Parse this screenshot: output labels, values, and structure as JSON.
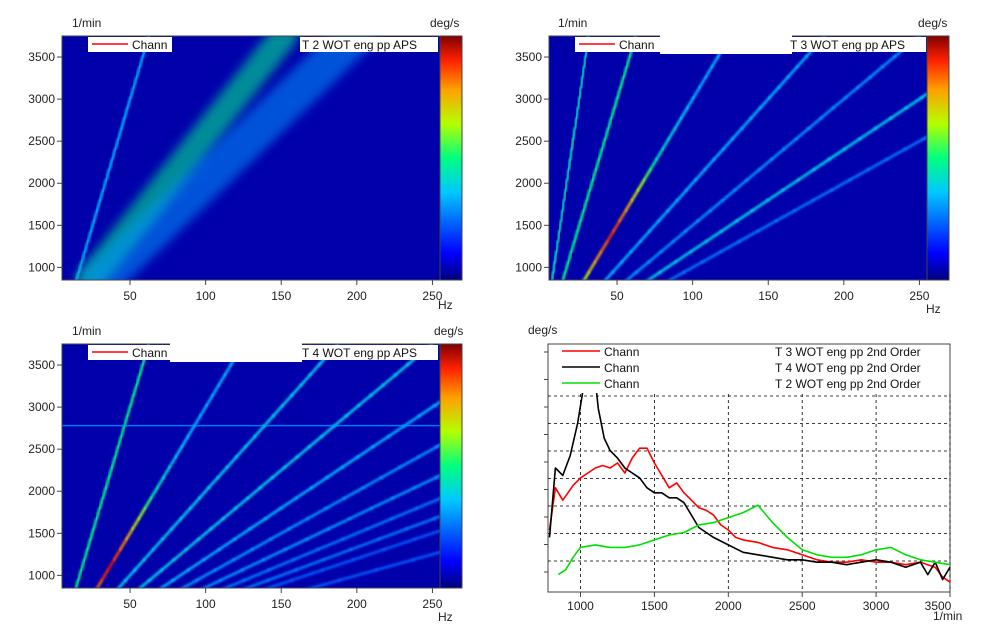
{
  "chart_data": [
    {
      "type": "heatmap",
      "panel": "spectrogram-top-left",
      "xlabel": "Hz",
      "ylabel": "1/min",
      "colorbar_label": "deg/s",
      "xlim": [
        5,
        255
      ],
      "ylim": [
        850,
        3750
      ],
      "xticks": [
        50,
        100,
        150,
        200,
        250
      ],
      "yticks": [
        1000,
        1500,
        2000,
        2500,
        3000,
        3500
      ],
      "legend": {
        "name_left": "Chann",
        "name_right": "T 2 WOT eng pp  APS",
        "color": "#ff0000"
      },
      "features": [
        {
          "kind": "order-line",
          "hz_at_1000": 17,
          "hz_at_3600": 60,
          "intensity": 0.35
        },
        {
          "kind": "diffuse-band",
          "hz_at_1000": 30,
          "hz_at_3600": 145,
          "intensity": 0.5,
          "width_hz": 18
        },
        {
          "kind": "diffuse-band",
          "hz_at_1000": 40,
          "hz_at_3600": 190,
          "intensity": 0.3,
          "width_hz": 25
        }
      ]
    },
    {
      "type": "heatmap",
      "panel": "spectrogram-top-right",
      "xlabel": "Hz",
      "ylabel": "1/min",
      "colorbar_label": "deg/s",
      "xlim": [
        5,
        255
      ],
      "ylim": [
        850,
        3750
      ],
      "xticks": [
        50,
        100,
        150,
        200,
        250
      ],
      "yticks": [
        1000,
        1500,
        2000,
        2500,
        3000,
        3500
      ],
      "legend": {
        "name_left": "Chann",
        "name_right": "T 3 WOT eng pp  APS",
        "color": "#ff0000"
      },
      "features": [
        {
          "kind": "order-line",
          "hz_at_1000": 8.3,
          "hz_at_3600": 30,
          "intensity": 0.45
        },
        {
          "kind": "order-line",
          "hz_at_1000": 16.7,
          "hz_at_3600": 60,
          "intensity": 0.5
        },
        {
          "kind": "order-line",
          "hz_at_1000": 33.3,
          "hz_at_3600": 120,
          "intensity": 0.95,
          "peak_at_rpm": 1400
        },
        {
          "kind": "order-line",
          "hz_at_1000": 50,
          "hz_at_3600": 180,
          "intensity": 0.35
        },
        {
          "kind": "order-line",
          "hz_at_1000": 66.7,
          "hz_at_3600": 240,
          "intensity": 0.3
        },
        {
          "kind": "order-line",
          "hz_at_1000": 83.3,
          "hz_at_3600": 300,
          "intensity": 0.4
        },
        {
          "kind": "order-line",
          "hz_at_1000": 100,
          "hz_at_3600": 360,
          "intensity": 0.25
        }
      ]
    },
    {
      "type": "heatmap",
      "panel": "spectrogram-bottom-left",
      "xlabel": "Hz",
      "ylabel": "1/min",
      "colorbar_label": "deg/s",
      "xlim": [
        5,
        255
      ],
      "ylim": [
        850,
        3750
      ],
      "xticks": [
        50,
        100,
        150,
        200,
        250
      ],
      "yticks": [
        1000,
        1500,
        2000,
        2500,
        3000,
        3500
      ],
      "legend": {
        "name_left": "Chann",
        "name_right": "T 4 WOT eng pp  APS",
        "color": "#ff0000"
      },
      "features": [
        {
          "kind": "order-line",
          "hz_at_1000": 16.7,
          "hz_at_3600": 60,
          "intensity": 0.5
        },
        {
          "kind": "order-line",
          "hz_at_1000": 33.3,
          "hz_at_3600": 120,
          "intensity": 1.0,
          "peak_at_rpm": 1100
        },
        {
          "kind": "order-line",
          "hz_at_1000": 50,
          "hz_at_3600": 180,
          "intensity": 0.4
        },
        {
          "kind": "order-line",
          "hz_at_1000": 66.7,
          "hz_at_3600": 240,
          "intensity": 0.4
        },
        {
          "kind": "order-line",
          "hz_at_1000": 83.3,
          "hz_at_3600": 300,
          "intensity": 0.35
        },
        {
          "kind": "order-line",
          "hz_at_1000": 100,
          "hz_at_3600": 360,
          "intensity": 0.3
        },
        {
          "kind": "order-line",
          "hz_at_1000": 116.7,
          "hz_at_3600": 420,
          "intensity": 0.3
        },
        {
          "kind": "order-line",
          "hz_at_1000": 133.3,
          "hz_at_3600": 480,
          "intensity": 0.25
        },
        {
          "kind": "order-line",
          "hz_at_1000": 150,
          "hz_at_3600": 540,
          "intensity": 0.25
        },
        {
          "kind": "order-line",
          "hz_at_1000": 166.7,
          "hz_at_3600": 600,
          "intensity": 0.2
        },
        {
          "kind": "order-line",
          "hz_at_1000": 200,
          "hz_at_3600": 720,
          "intensity": 0.2
        },
        {
          "kind": "horizontal-line",
          "rpm": 2780,
          "intensity": 0.3
        }
      ]
    },
    {
      "type": "line",
      "panel": "order-cut-bottom-right",
      "xlabel": "1/min",
      "ylabel": "deg/s",
      "xlim": [
        780,
        3500
      ],
      "ylim": [
        0,
        1
      ],
      "xticks": [
        1000,
        1500,
        2000,
        2500,
        3000,
        3500
      ],
      "grid": true,
      "legend_placement": "top",
      "series": [
        {
          "name_left": "Chann",
          "name_right": "T 3 WOT eng pp  2nd Order",
          "color": "#ff0000",
          "x": [
            790,
            830,
            880,
            950,
            1000,
            1050,
            1100,
            1150,
            1200,
            1250,
            1300,
            1350,
            1400,
            1450,
            1500,
            1550,
            1600,
            1650,
            1700,
            1750,
            1800,
            1850,
            1900,
            1950,
            2000,
            2050,
            2100,
            2200,
            2300,
            2400,
            2500,
            2600,
            2700,
            2800,
            2900,
            3000,
            3100,
            3200,
            3300,
            3400,
            3450,
            3500
          ],
          "y": [
            0.25,
            0.42,
            0.37,
            0.43,
            0.46,
            0.48,
            0.5,
            0.51,
            0.5,
            0.52,
            0.48,
            0.54,
            0.58,
            0.58,
            0.52,
            0.47,
            0.42,
            0.44,
            0.4,
            0.37,
            0.34,
            0.33,
            0.31,
            0.27,
            0.25,
            0.22,
            0.21,
            0.2,
            0.18,
            0.17,
            0.15,
            0.13,
            0.12,
            0.12,
            0.13,
            0.12,
            0.12,
            0.11,
            0.12,
            0.1,
            0.06,
            0.04
          ]
        },
        {
          "name_left": "Chann",
          "name_right": "T 4 WOT eng pp  2nd Order",
          "color": "#000000",
          "x": [
            790,
            830,
            880,
            930,
            980,
            1030,
            1060,
            1090,
            1120,
            1160,
            1200,
            1250,
            1300,
            1350,
            1400,
            1450,
            1500,
            1550,
            1600,
            1650,
            1700,
            1800,
            1900,
            2000,
            2100,
            2200,
            2300,
            2400,
            2500,
            2600,
            2700,
            2800,
            2900,
            3000,
            3100,
            3200,
            3300,
            3350,
            3400,
            3450,
            3500
          ],
          "y": [
            0.22,
            0.5,
            0.47,
            0.55,
            0.68,
            0.86,
            0.97,
            0.91,
            0.74,
            0.62,
            0.57,
            0.54,
            0.5,
            0.48,
            0.46,
            0.42,
            0.4,
            0.4,
            0.38,
            0.38,
            0.36,
            0.26,
            0.22,
            0.19,
            0.16,
            0.15,
            0.14,
            0.13,
            0.13,
            0.12,
            0.12,
            0.11,
            0.12,
            0.13,
            0.12,
            0.1,
            0.12,
            0.07,
            0.12,
            0.05,
            0.1
          ]
        },
        {
          "name_left": "Chann",
          "name_right": "T 2 WOT eng pp  2nd Order",
          "color": "#00e000",
          "x": [
            850,
            900,
            950,
            1000,
            1100,
            1200,
            1300,
            1400,
            1500,
            1600,
            1700,
            1800,
            1900,
            2000,
            2100,
            2200,
            2300,
            2400,
            2500,
            2600,
            2700,
            2800,
            2900,
            3000,
            3100,
            3200,
            3300,
            3400,
            3500
          ],
          "y": [
            0.07,
            0.09,
            0.14,
            0.18,
            0.19,
            0.18,
            0.18,
            0.19,
            0.21,
            0.23,
            0.24,
            0.27,
            0.28,
            0.3,
            0.32,
            0.35,
            0.28,
            0.22,
            0.17,
            0.15,
            0.14,
            0.14,
            0.15,
            0.17,
            0.18,
            0.15,
            0.13,
            0.12,
            0.11
          ]
        }
      ]
    }
  ]
}
